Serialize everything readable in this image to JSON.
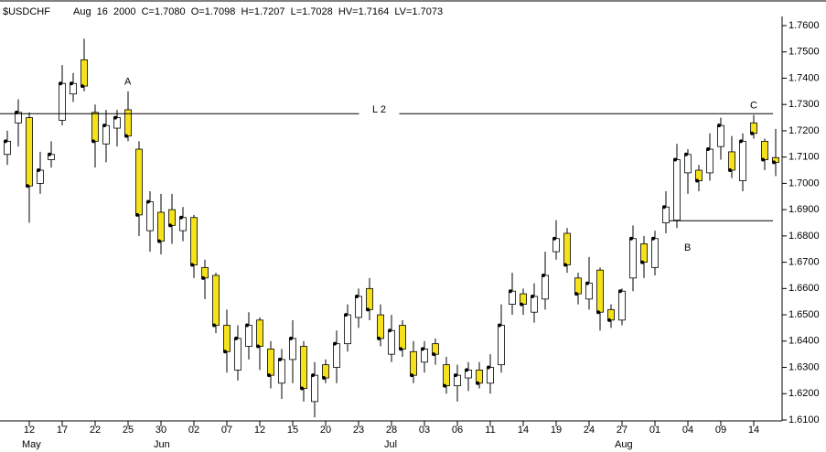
{
  "chart_data": {
    "type": "candlestick",
    "title": "$USDCHF",
    "subtitle": "Aug  16  2000  C=1.7080  O=1.7098  H=1.7207  L=1.7028  HV=1.7164  LV=1.7073",
    "categories": [
      null,
      null,
      "12",
      null,
      null,
      "17",
      null,
      null,
      "22",
      null,
      null,
      "25",
      null,
      null,
      "30",
      null,
      null,
      "02",
      null,
      null,
      "07",
      null,
      null,
      "12",
      null,
      null,
      "15",
      null,
      null,
      "20",
      null,
      null,
      "23",
      null,
      null,
      "28",
      null,
      null,
      "03",
      null,
      null,
      "06",
      null,
      null,
      "11",
      null,
      null,
      "14",
      null,
      null,
      "19",
      null,
      null,
      "24",
      null,
      null,
      "27",
      null,
      null,
      "01",
      null,
      null,
      "04",
      null,
      null,
      "09",
      null,
      null,
      "14",
      null,
      null
    ],
    "months": [
      null,
      null,
      "May",
      null,
      null,
      null,
      null,
      null,
      null,
      null,
      null,
      null,
      null,
      null,
      "Jun",
      null,
      null,
      null,
      null,
      null,
      null,
      null,
      null,
      null,
      null,
      null,
      null,
      null,
      null,
      null,
      null,
      null,
      null,
      null,
      null,
      "Jul",
      null,
      null,
      null,
      null,
      null,
      null,
      null,
      null,
      null,
      null,
      null,
      null,
      null,
      null,
      null,
      null,
      null,
      null,
      null,
      null,
      "Aug",
      null,
      null,
      null,
      null,
      null,
      null,
      null,
      null,
      null,
      null,
      null,
      null,
      null,
      null
    ],
    "open": [
      1.711,
      1.723,
      1.725,
      1.7,
      1.709,
      1.724,
      1.734,
      1.747,
      1.727,
      1.715,
      1.721,
      1.728,
      1.713,
      1.682,
      1.689,
      1.69,
      1.682,
      1.687,
      1.668,
      1.665,
      1.646,
      1.629,
      1.638,
      1.648,
      1.637,
      1.624,
      1.633,
      1.638,
      1.617,
      1.631,
      1.63,
      1.639,
      1.649,
      1.66,
      1.65,
      1.635,
      1.646,
      1.636,
      1.632,
      1.639,
      1.631,
      1.623,
      1.626,
      1.629,
      1.624,
      1.631,
      1.654,
      1.658,
      1.651,
      1.656,
      1.674,
      1.681,
      1.664,
      1.656,
      1.667,
      1.652,
      1.648,
      1.664,
      1.677,
      1.668,
      1.685,
      1.686,
      1.704,
      1.705,
      1.704,
      1.714,
      1.712,
      1.701,
      1.723,
      1.716,
      1.7098
    ],
    "high": [
      1.72,
      1.732,
      1.727,
      1.712,
      1.716,
      1.745,
      1.742,
      1.755,
      1.73,
      1.728,
      1.728,
      1.735,
      1.716,
      1.697,
      1.696,
      1.696,
      1.691,
      1.688,
      1.671,
      1.666,
      1.652,
      1.646,
      1.651,
      1.649,
      1.64,
      1.637,
      1.648,
      1.64,
      1.632,
      1.633,
      1.644,
      1.654,
      1.66,
      1.664,
      1.654,
      1.65,
      1.648,
      1.64,
      1.64,
      1.641,
      1.634,
      1.631,
      1.632,
      1.632,
      1.635,
      1.654,
      1.666,
      1.66,
      1.662,
      1.674,
      1.686,
      1.683,
      1.666,
      1.672,
      1.668,
      1.654,
      1.66,
      1.684,
      1.68,
      1.682,
      1.697,
      1.715,
      1.713,
      1.707,
      1.719,
      1.725,
      1.718,
      1.719,
      1.726,
      1.717,
      1.7207
    ],
    "low": [
      1.707,
      1.714,
      1.685,
      1.696,
      1.706,
      1.722,
      1.731,
      1.735,
      1.706,
      1.708,
      1.714,
      1.716,
      1.68,
      1.674,
      1.673,
      1.677,
      1.678,
      1.664,
      1.656,
      1.643,
      1.628,
      1.625,
      1.633,
      1.629,
      1.622,
      1.618,
      1.624,
      1.617,
      1.611,
      1.624,
      1.624,
      1.636,
      1.645,
      1.648,
      1.638,
      1.632,
      1.634,
      1.624,
      1.628,
      1.631,
      1.62,
      1.617,
      1.621,
      1.622,
      1.62,
      1.628,
      1.65,
      1.65,
      1.647,
      1.652,
      1.671,
      1.666,
      1.654,
      1.652,
      1.644,
      1.645,
      1.646,
      1.659,
      1.664,
      1.665,
      1.681,
      1.683,
      1.696,
      1.697,
      1.701,
      1.709,
      1.702,
      1.697,
      1.717,
      1.705,
      1.7028
    ],
    "close": [
      1.716,
      1.727,
      1.699,
      1.705,
      1.711,
      1.738,
      1.738,
      1.737,
      1.716,
      1.722,
      1.725,
      1.718,
      1.688,
      1.693,
      1.678,
      1.684,
      1.687,
      1.669,
      1.664,
      1.646,
      1.636,
      1.641,
      1.646,
      1.638,
      1.627,
      1.633,
      1.641,
      1.622,
      1.627,
      1.626,
      1.639,
      1.65,
      1.657,
      1.652,
      1.641,
      1.644,
      1.637,
      1.627,
      1.637,
      1.635,
      1.623,
      1.627,
      1.629,
      1.624,
      1.63,
      1.646,
      1.659,
      1.654,
      1.657,
      1.665,
      1.679,
      1.669,
      1.658,
      1.662,
      1.651,
      1.648,
      1.659,
      1.679,
      1.67,
      1.679,
      1.691,
      1.709,
      1.711,
      1.701,
      1.713,
      1.722,
      1.705,
      1.716,
      1.719,
      1.709,
      1.708
    ],
    "up_color": "#ffffff",
    "down_color": "#f5e21a",
    "ylim": [
      1.61,
      1.76
    ],
    "yticks": [
      {
        "value": 1.61,
        "label": "1.6100"
      },
      {
        "value": 1.62,
        "label": "1.6200"
      },
      {
        "value": 1.63,
        "label": "1.6300"
      },
      {
        "value": 1.64,
        "label": "1.6400"
      },
      {
        "value": 1.65,
        "label": "1.6500"
      },
      {
        "value": 1.66,
        "label": "1.6600"
      },
      {
        "value": 1.67,
        "label": "1.6700"
      },
      {
        "value": 1.68,
        "label": "1.6800"
      },
      {
        "value": 1.69,
        "label": "1.6900"
      },
      {
        "value": 1.7,
        "label": "1.7000"
      },
      {
        "value": 1.71,
        "label": "1.7100"
      },
      {
        "value": 1.72,
        "label": "1.7200"
      },
      {
        "value": 1.73,
        "label": "1.7300"
      },
      {
        "value": 1.74,
        "label": "1.7400"
      },
      {
        "value": 1.75,
        "label": "1.7500"
      },
      {
        "value": 1.76,
        "label": "1.7600"
      }
    ],
    "lines": [
      {
        "label": "L 2",
        "value": 1.7265,
        "from": 0,
        "to": 70
      },
      {
        "value": 1.6858,
        "from": 61,
        "to": 70
      }
    ],
    "annotations": [
      {
        "text": "A",
        "index": 11
      },
      {
        "text": "B",
        "index": 62
      },
      {
        "text": "C",
        "index": 68
      }
    ]
  }
}
